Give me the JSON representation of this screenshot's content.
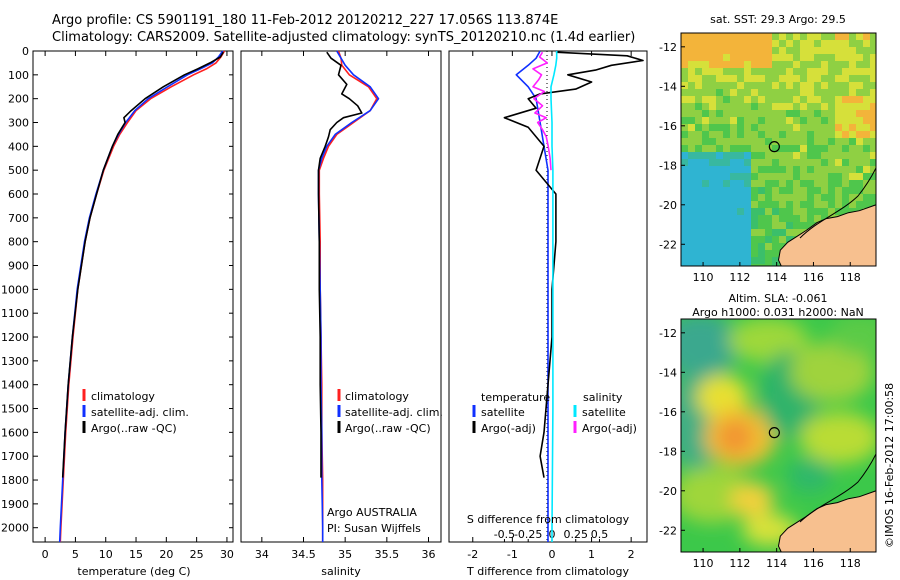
{
  "header": {
    "line1": "Argo profile: CS 5901191_180 11-Feb-2012 20120212_227 17.056S 113.874E",
    "line2": "Climatology: CARS2009. Satellite-adjusted climatology: synTS_20120210.nc (1.4d earlier)"
  },
  "colors": {
    "climatology": "#ff2020",
    "satellite": "#1030ff",
    "argo": "#000000",
    "t_satellite": "#1030ff",
    "s_satellite": "#00e8ff",
    "s_argo": "#ff20ff",
    "land": "#f7c08f"
  },
  "chart_data": [
    {
      "type": "line",
      "name": "temperature-profile",
      "xlabel": "temperature (deg C)",
      "ylabel": "",
      "xlim": [
        -2,
        31
      ],
      "ylim": [
        2060,
        0
      ],
      "xticks": [
        "0",
        "5",
        "10",
        "15",
        "20",
        "25",
        "30"
      ],
      "yticks": [
        "0",
        "100",
        "200",
        "300",
        "400",
        "500",
        "600",
        "700",
        "800",
        "900",
        "1000",
        "1100",
        "1200",
        "1300",
        "1400",
        "1500",
        "1600",
        "1700",
        "1800",
        "1900",
        "2000"
      ],
      "legend": [
        "climatology",
        "satellite-adj. clim.",
        "Argo(..raw -QC)"
      ],
      "series": [
        {
          "name": "climatology",
          "depth": [
            0,
            25,
            50,
            75,
            100,
            150,
            200,
            250,
            300,
            350,
            400,
            500,
            600,
            700,
            800,
            1000,
            1200,
            1400,
            1600,
            1800,
            2000,
            2060
          ],
          "values": [
            29.6,
            29.0,
            28.2,
            26.6,
            24.5,
            20.8,
            17.4,
            15.0,
            13.6,
            12.3,
            11.3,
            9.7,
            8.5,
            7.4,
            6.6,
            5.4,
            4.6,
            3.9,
            3.4,
            3.0,
            2.6,
            2.5
          ]
        },
        {
          "name": "satellite-adj. clim.",
          "depth": [
            0,
            25,
            50,
            75,
            100,
            150,
            200,
            250,
            300,
            350,
            400,
            500,
            600,
            700,
            800,
            1000,
            1200,
            1400,
            1600,
            1800,
            2000,
            2060
          ],
          "values": [
            29.3,
            28.6,
            27.6,
            25.6,
            23.5,
            20.2,
            17.0,
            14.8,
            13.3,
            12.1,
            11.1,
            9.6,
            8.4,
            7.3,
            6.5,
            5.3,
            4.5,
            3.8,
            3.3,
            2.9,
            2.5,
            2.4
          ]
        },
        {
          "name": "Argo(..raw -QC)",
          "depth": [
            5,
            25,
            50,
            75,
            100,
            150,
            200,
            250,
            280,
            300,
            350,
            400,
            500,
            600,
            700,
            800,
            1000,
            1200,
            1400,
            1600,
            1790
          ],
          "values": [
            29.4,
            28.9,
            27.2,
            25.2,
            23.0,
            19.5,
            16.5,
            14.2,
            13.0,
            13.2,
            12.0,
            11.1,
            9.6,
            8.5,
            7.4,
            6.6,
            5.4,
            4.5,
            3.8,
            3.3,
            2.9
          ]
        }
      ]
    },
    {
      "type": "line",
      "name": "salinity-profile",
      "xlabel": "salinity",
      "xlim": [
        33.75,
        36.15
      ],
      "ylim": [
        2060,
        0
      ],
      "xticks": [
        "34",
        "34.5",
        "35",
        "35.5",
        "36"
      ],
      "legend": [
        "climatology",
        "satellite-adj. clim.",
        "Argo(..raw -QC)"
      ],
      "annotations": [
        "Argo AUSTRALIA",
        "PI: Susan Wijffels"
      ],
      "series": [
        {
          "name": "climatology",
          "depth": [
            0,
            30,
            60,
            100,
            150,
            200,
            250,
            300,
            350,
            400,
            450,
            500,
            600,
            800,
            1000,
            1200,
            1400,
            1600,
            1800,
            2000,
            2060
          ],
          "values": [
            34.92,
            34.95,
            34.96,
            35.05,
            35.28,
            35.38,
            35.3,
            35.1,
            34.9,
            34.8,
            34.74,
            34.69,
            34.69,
            34.7,
            34.7,
            34.71,
            34.72,
            34.72,
            34.73,
            34.73,
            34.73
          ]
        },
        {
          "name": "satellite-adj. clim.",
          "depth": [
            0,
            30,
            60,
            100,
            150,
            200,
            250,
            300,
            350,
            400,
            450,
            500,
            600,
            800,
            1000,
            1200,
            1400,
            1600,
            1800,
            2000,
            2060
          ],
          "values": [
            34.9,
            34.95,
            35.0,
            35.1,
            35.3,
            35.4,
            35.3,
            35.08,
            34.88,
            34.78,
            34.72,
            34.68,
            34.68,
            34.69,
            34.7,
            34.71,
            34.71,
            34.72,
            34.72,
            34.73,
            34.73
          ]
        },
        {
          "name": "Argo(..raw -QC)",
          "depth": [
            5,
            30,
            60,
            100,
            140,
            180,
            200,
            230,
            260,
            280,
            300,
            330,
            360,
            400,
            450,
            500,
            600,
            800,
            1000,
            1200,
            1400,
            1600,
            1790
          ],
          "values": [
            34.78,
            34.83,
            34.95,
            34.92,
            35.02,
            34.96,
            35.05,
            35.15,
            35.2,
            34.98,
            34.9,
            34.82,
            34.8,
            34.76,
            34.7,
            34.68,
            34.68,
            34.69,
            34.69,
            34.7,
            34.7,
            34.71,
            34.71
          ]
        }
      ]
    },
    {
      "type": "line",
      "name": "difference-profile",
      "xlabel": "T difference from climatology",
      "x2label": "S difference from climatology",
      "xlim": [
        -2.6,
        2.4
      ],
      "ylim": [
        2060,
        0
      ],
      "xticks": [
        "-2",
        "-1",
        "0",
        "1",
        "2"
      ],
      "x2ticks": [
        "-0.5",
        "-0.25",
        "0",
        "0.25",
        "0.5"
      ],
      "legend": {
        "temperature_title": "temperature",
        "salinity_title": "salinity",
        "t_satellite": "satellite",
        "t_argo": "Argo(-adj)",
        "s_satellite": "satellite",
        "s_argo": "Argo(-adj)"
      },
      "series": [
        {
          "name": "T satellite",
          "depth": [
            0,
            30,
            60,
            100,
            150,
            200,
            300,
            400,
            500,
            700,
            1000,
            1500,
            2000,
            2060
          ],
          "values": [
            -0.3,
            -0.4,
            -0.6,
            -0.9,
            -0.6,
            -0.4,
            -0.3,
            -0.2,
            -0.1,
            -0.1,
            -0.1,
            -0.1,
            -0.1,
            -0.1
          ]
        },
        {
          "name": "T Argo(-adj)",
          "depth": [
            5,
            20,
            40,
            60,
            80,
            100,
            130,
            160,
            180,
            200,
            240,
            280,
            320,
            400,
            500,
            600,
            800,
            1000,
            1200,
            1400,
            1600,
            1700,
            1790
          ],
          "values": [
            0.1,
            1.9,
            2.3,
            1.5,
            1.1,
            0.4,
            1.0,
            0.6,
            -0.3,
            -0.6,
            -0.4,
            -1.2,
            -0.6,
            -0.2,
            -0.4,
            0.1,
            0.1,
            0.0,
            0.0,
            -0.1,
            -0.2,
            -0.3,
            -0.2
          ]
        },
        {
          "name": "S satellite",
          "depth": [
            0,
            30,
            60,
            100,
            150,
            200,
            300,
            400,
            500,
            600,
            700,
            1000,
            1500,
            2000,
            2060
          ],
          "values": [
            0.05,
            0.05,
            0.04,
            0.02,
            -0.01,
            -0.01,
            0.0,
            0.0,
            0.01,
            0.01,
            0.01,
            0.01,
            0.01,
            0.0,
            0.0
          ]
        },
        {
          "name": "S Argo(-adj)",
          "depth": [
            5,
            25,
            50,
            75,
            100,
            120,
            150,
            170,
            200,
            230,
            260,
            280,
            300,
            330,
            360,
            400,
            450,
            500
          ],
          "values": [
            -0.1,
            -0.13,
            -0.05,
            -0.2,
            -0.11,
            -0.14,
            -0.2,
            -0.08,
            -0.19,
            -0.1,
            -0.18,
            -0.06,
            -0.15,
            -0.1,
            -0.06,
            -0.04,
            -0.02,
            -0.01
          ]
        }
      ]
    },
    {
      "type": "heatmap",
      "name": "sst-map",
      "title": "sat. SST: 29.3 Argo: 29.5",
      "xlim": [
        108.8,
        119.4
      ],
      "ylim": [
        -23.1,
        -11.3
      ],
      "xticks": [
        "110",
        "112",
        "114",
        "116",
        "118"
      ],
      "yticks": [
        "-12",
        "-14",
        "-16",
        "-18",
        "-20",
        "-22"
      ],
      "marker": {
        "lon": 113.874,
        "lat": -17.056
      }
    },
    {
      "type": "heatmap",
      "name": "sla-map",
      "title1": "Altim. SLA: -0.061",
      "title2": "Argo h1000: 0.031 h2000: NaN",
      "xlim": [
        108.8,
        119.4
      ],
      "ylim": [
        -23.1,
        -11.3
      ],
      "xticks": [
        "110",
        "112",
        "114",
        "116",
        "118"
      ],
      "yticks": [
        "-12",
        "-14",
        "-16",
        "-18",
        "-20",
        "-22"
      ],
      "marker": {
        "lon": 113.874,
        "lat": -17.056
      }
    }
  ],
  "footer": {
    "credit": "©IMOS 16-Feb-2012 17:00:58"
  }
}
